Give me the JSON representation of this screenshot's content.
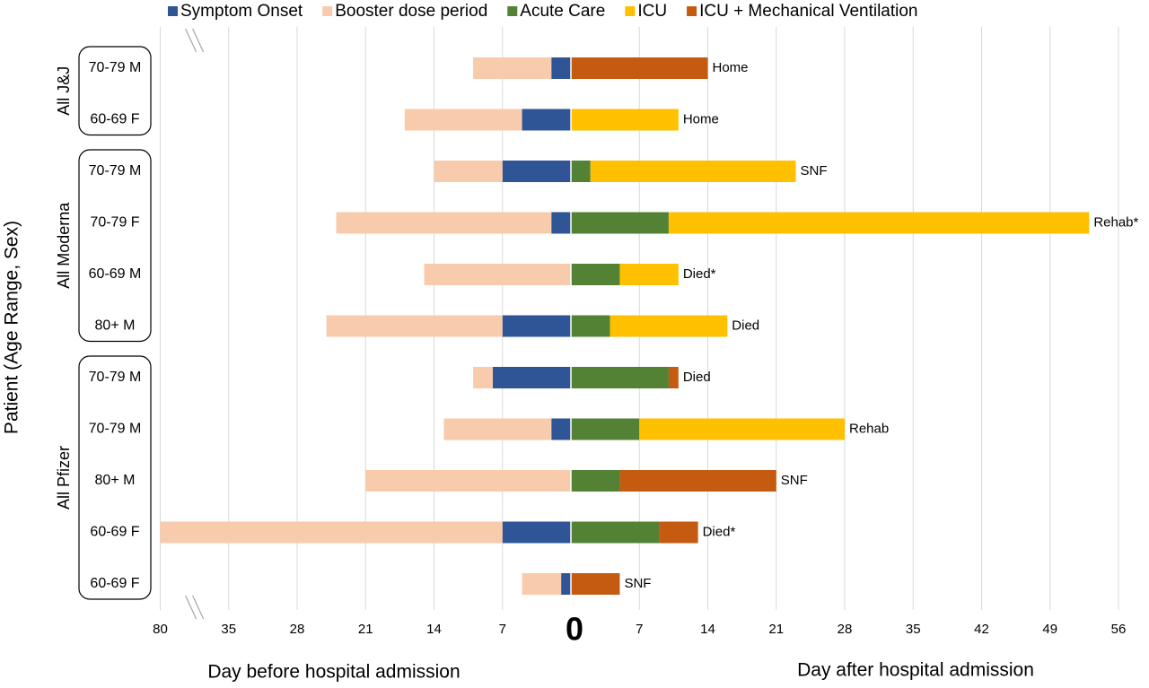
{
  "chart_data": {
    "type": "diverging-bar",
    "categories": [
      "70-79 M",
      "60-69 F",
      "70-79 M",
      "70-79 F",
      "60-69 M",
      "80+ M",
      "70-79 M",
      "70-79 M",
      "80+ M",
      "60-69 F",
      "60-69 F"
    ],
    "groups": [
      {
        "name": "All J&J",
        "rows": [
          0,
          1
        ]
      },
      {
        "name": "All Moderna",
        "rows": [
          2,
          5
        ]
      },
      {
        "name": "All Pfizer",
        "rows": [
          6,
          10
        ]
      }
    ],
    "series": [
      {
        "name": "Symptom Onset",
        "color": "#2f5597",
        "side": "before",
        "values": [
          2,
          5,
          7,
          2,
          0,
          7,
          8,
          2,
          0,
          7,
          1
        ]
      },
      {
        "name": "Booster dose period",
        "color": "#f8cbad",
        "side": "before",
        "values": [
          8,
          12,
          7,
          22,
          15,
          18,
          2,
          11,
          21,
          73,
          4
        ]
      },
      {
        "name": "Acute Care",
        "color": "#548235",
        "side": "after",
        "values": [
          0,
          0,
          2,
          10,
          5,
          4,
          10,
          7,
          5,
          9,
          0
        ]
      },
      {
        "name": "ICU",
        "color": "#ffc000",
        "side": "after",
        "values": [
          0,
          11,
          21,
          43,
          6,
          12,
          0,
          21,
          0,
          0,
          0
        ]
      },
      {
        "name": "ICU + Mechanical Ventilation",
        "color": "#c55a11",
        "side": "after",
        "values": [
          14,
          0,
          0,
          0,
          0,
          0,
          1,
          0,
          16,
          4,
          5
        ]
      }
    ],
    "end_labels": [
      "Home",
      "Home",
      "SNF",
      "Rehab*",
      "Died*",
      "Died",
      "Died",
      "Rehab",
      "SNF",
      "Died*",
      "SNF"
    ],
    "xticks_before": [
      80,
      35,
      28,
      21,
      14,
      7
    ],
    "xticks_after": [
      0,
      7,
      14,
      21,
      28,
      35,
      42,
      49,
      56
    ],
    "xlim_after": [
      0,
      56
    ],
    "axis_break": true,
    "grid": true,
    "xlabel_before": "Day before hospital admission",
    "xlabel_after": "Day after hospital admission",
    "ylabel": "Patient (Age Range, Sex)"
  }
}
